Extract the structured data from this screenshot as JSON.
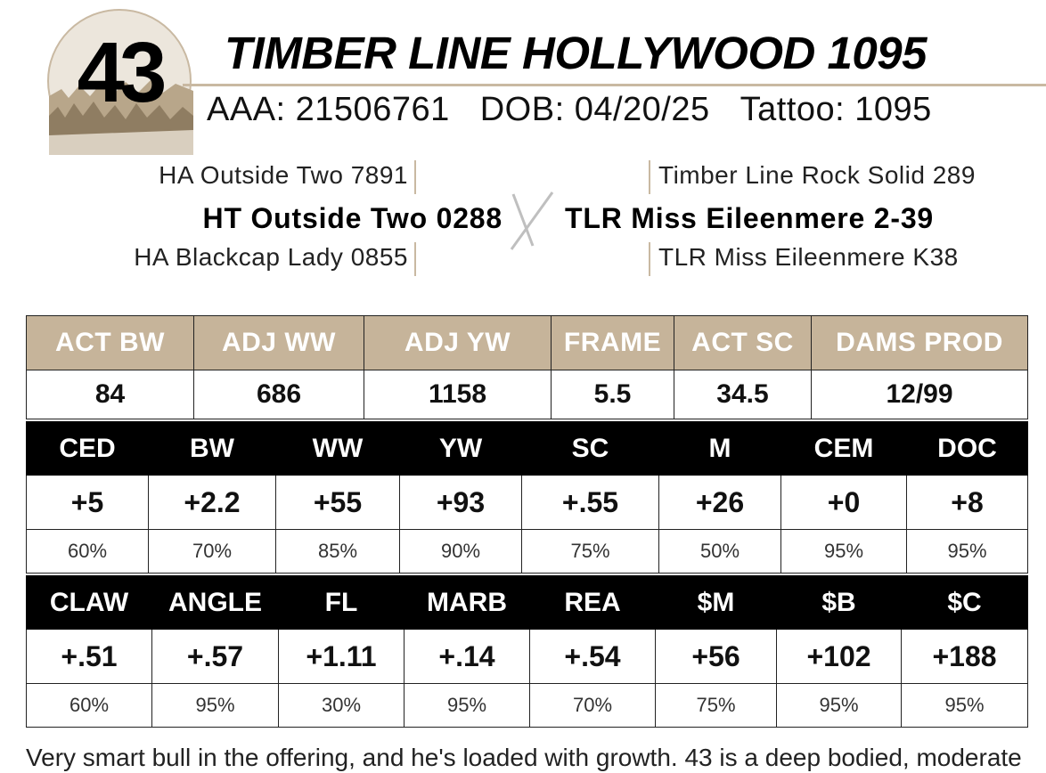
{
  "lot": {
    "number": "43"
  },
  "animal": {
    "name": "TIMBER LINE HOLLYWOOD 1095",
    "aaa_label": "AAA: 21506761",
    "dob_label": "DOB: 04/20/25",
    "tattoo_label": "Tattoo: 1095"
  },
  "pedigree": {
    "sire_sire": "HA Outside Two 7891",
    "sire": "HT Outside Two 0288",
    "sire_dam": "HA Blackcap Lady 0855",
    "dam_sire": "Timber Line Rock Solid 289",
    "dam": "TLR Miss Eileenmere 2-39",
    "dam_dam": "TLR Miss Eileenmere K38"
  },
  "performance": {
    "headers": [
      "ACT BW",
      "ADJ WW",
      "ADJ YW",
      "FRAME",
      "ACT SC",
      "DAMS PROD"
    ],
    "values": [
      "84",
      "686",
      "1158",
      "5.5",
      "34.5",
      "12/99"
    ]
  },
  "epd_row1": {
    "headers": [
      "CED",
      "BW",
      "WW",
      "YW",
      "SC",
      "M",
      "CEM",
      "DOC"
    ],
    "values": [
      "+5",
      "+2.2",
      "+55",
      "+93",
      "+.55",
      "+26",
      "+0",
      "+8"
    ],
    "percentiles": [
      "60%",
      "70%",
      "85%",
      "90%",
      "75%",
      "50%",
      "95%",
      "95%"
    ]
  },
  "epd_row2": {
    "headers": [
      "CLAW",
      "ANGLE",
      "FL",
      "MARB",
      "REA",
      "$M",
      "$B",
      "$C"
    ],
    "values": [
      "+.51",
      "+.57",
      "+1.11",
      "+.14",
      "+.54",
      "+56",
      "+102",
      "+188"
    ],
    "percentiles": [
      "60%",
      "95%",
      "30%",
      "95%",
      "70%",
      "75%",
      "95%",
      "95%"
    ]
  },
  "footer": {
    "text": "Very smart bull in the offering, and he's loaded with growth. 43 is a deep bodied, moderate"
  },
  "colors": {
    "tan": "#c6b49a",
    "black": "#000000"
  }
}
